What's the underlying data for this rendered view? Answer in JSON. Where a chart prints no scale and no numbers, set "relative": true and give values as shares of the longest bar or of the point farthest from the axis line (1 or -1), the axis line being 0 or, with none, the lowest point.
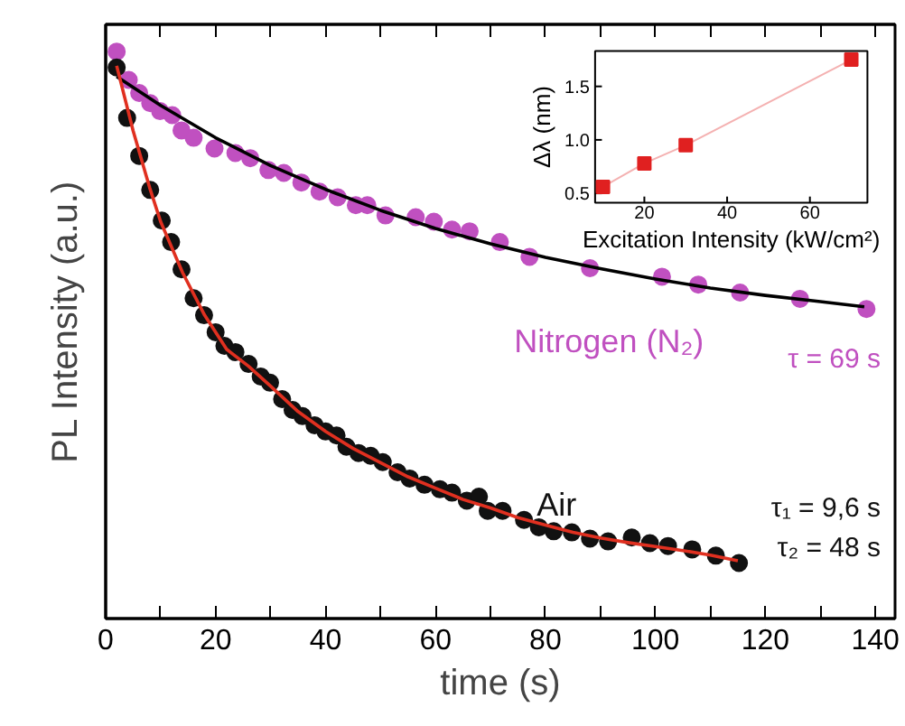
{
  "chart_data": [
    {
      "type": "scatter",
      "xlabel": "time (s)",
      "ylabel": "PL Intensity (a.u.)",
      "relative": true,
      "tick_labels": "x",
      "marker": "circle",
      "xlim": [
        0,
        143.6
      ],
      "xticks": [
        0,
        {
          "value": 10,
          "label": null
        },
        20,
        {
          "value": 30,
          "label": null
        },
        40,
        {
          "value": 50,
          "label": null
        },
        60,
        {
          "value": 70,
          "label": null
        },
        80,
        {
          "value": 90,
          "label": null
        },
        100,
        {
          "value": 110,
          "label": null
        },
        120,
        {
          "value": 130,
          "label": null
        },
        140
      ],
      "series": [
        {
          "name": "Nitrogen (N₂)",
          "color": "#c050c0",
          "x": [
            2.0,
            4.2,
            6.1,
            8.1,
            9.9,
            12.1,
            13.8,
            16.0,
            19.8,
            23.6,
            26.3,
            29.6,
            32.4,
            35.6,
            38.9,
            42.2,
            45.5,
            47.6,
            50.9,
            56.4,
            59.7,
            63.0,
            66.2,
            71.7,
            77.1,
            88.1,
            101.2,
            107.8,
            115.4,
            126.3,
            138.4
          ],
          "values": [
            1.0,
            0.95,
            0.927,
            0.909,
            0.895,
            0.888,
            0.861,
            0.848,
            0.829,
            0.821,
            0.812,
            0.791,
            0.786,
            0.769,
            0.753,
            0.743,
            0.729,
            0.729,
            0.711,
            0.708,
            0.7,
            0.686,
            0.683,
            0.664,
            0.638,
            0.618,
            0.603,
            0.589,
            0.575,
            0.564,
            0.546
          ]
        },
        {
          "type": "line",
          "marker": "none",
          "color": "#000000",
          "x": [
            2,
            10,
            20,
            30,
            40,
            50,
            60,
            70,
            80,
            90,
            100,
            110,
            120,
            130,
            138
          ],
          "values": [
            0.956,
            0.905,
            0.848,
            0.799,
            0.757,
            0.72,
            0.688,
            0.661,
            0.637,
            0.617,
            0.599,
            0.583,
            0.57,
            0.559,
            0.55
          ]
        },
        {
          "name": "Air",
          "color": "#111111",
          "x": [
            2.0,
            3.9,
            6.1,
            8.1,
            10.2,
            11.9,
            13.8,
            16.0,
            17.9,
            20.0,
            21.6,
            23.6,
            26.0,
            28.2,
            29.9,
            32.1,
            34.0,
            35.8,
            38.0,
            40.0,
            42.0,
            43.8,
            46.0,
            48.2,
            50.4,
            53.1,
            55.3,
            58.0,
            60.8,
            63.0,
            65.7,
            67.9,
            69.5,
            72.2,
            76.1,
            78.8,
            81.5,
            84.8,
            88.1,
            91.4,
            95.7,
            99.0,
            102.3,
            106.7,
            111.0,
            115.2
          ],
          "values": [
            0.972,
            0.883,
            0.816,
            0.756,
            0.702,
            0.664,
            0.616,
            0.565,
            0.535,
            0.505,
            0.481,
            0.47,
            0.449,
            0.427,
            0.416,
            0.387,
            0.368,
            0.357,
            0.341,
            0.33,
            0.323,
            0.303,
            0.292,
            0.287,
            0.276,
            0.258,
            0.247,
            0.236,
            0.228,
            0.222,
            0.208,
            0.215,
            0.19,
            0.19,
            0.174,
            0.161,
            0.154,
            0.152,
            0.141,
            0.136,
            0.143,
            0.133,
            0.128,
            0.122,
            0.111,
            0.098
          ]
        },
        {
          "type": "line",
          "marker": "none",
          "color": "#e03020",
          "x": [
            2,
            5,
            8,
            10,
            14,
            18,
            22,
            26,
            30,
            35,
            40,
            45,
            50,
            55,
            60,
            65,
            70,
            75,
            80,
            85,
            90,
            95,
            100,
            105,
            110,
            115
          ],
          "values": [
            0.975,
            0.86,
            0.76,
            0.7,
            0.61,
            0.535,
            0.475,
            0.445,
            0.41,
            0.365,
            0.33,
            0.3,
            0.275,
            0.25,
            0.23,
            0.21,
            0.195,
            0.178,
            0.165,
            0.152,
            0.142,
            0.134,
            0.127,
            0.12,
            0.112,
            0.102
          ]
        }
      ],
      "annotations": [
        "τ = 69 s",
        "τ₁ = 9,6 s",
        "τ₂ = 48 s"
      ]
    },
    {
      "type": "line",
      "xlabel": "Excitation Intensity (kW/cm²)",
      "ylabel": "Δλ (nm)",
      "marker": "square",
      "xlim": [
        8.1,
        73.9
      ],
      "ylim": [
        0.413,
        1.83
      ],
      "xticks": [
        20,
        40,
        60
      ],
      "yticks": [
        0.5,
        {
          "value": 1.0,
          "label": "1.0"
        },
        1.5
      ],
      "series": [
        {
          "color": "#e02020",
          "x": [
            10,
            20,
            30,
            70
          ],
          "values": [
            0.56,
            0.78,
            0.95,
            1.75
          ]
        }
      ]
    }
  ]
}
